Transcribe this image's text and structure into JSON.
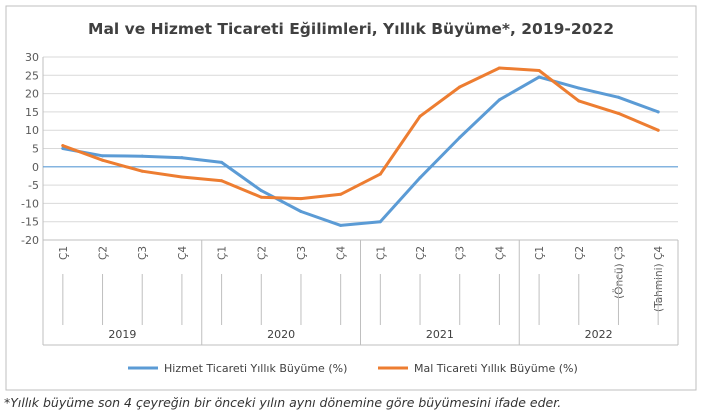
{
  "chart_data": {
    "type": "line",
    "title": "Mal ve Hizmet Ticareti Eğilimleri, Yıllık Büyüme*, 2019-2022",
    "ylim": [
      -20,
      30
    ],
    "yticks": [
      "30",
      "25",
      "20",
      "15",
      "10",
      "5",
      "0",
      "-5",
      "-10",
      "-15",
      "-20"
    ],
    "quarter_labels": [
      "Ç1",
      "Ç2",
      "Ç3",
      "Ç4",
      "Ç1",
      "Ç2",
      "Ç3",
      "Ç4",
      "Ç1",
      "Ç2",
      "Ç3",
      "Ç4",
      "Ç1",
      "Ç2",
      "(Öncü) Ç3",
      "(Tahmini) Ç4"
    ],
    "years": [
      "2019",
      "2020",
      "2021",
      "2022"
    ],
    "grid": true,
    "legend_position": "bottom",
    "series": [
      {
        "name": "Hizmet Ticareti Yıllık Büyüme (%)",
        "color": "#5B9BD5",
        "values": [
          5.0,
          3.0,
          2.9,
          2.5,
          1.2,
          -6.5,
          -12.2,
          -16.0,
          -15.0,
          -3.0,
          8.0,
          18.3,
          24.5,
          21.5,
          19.0,
          15.0
        ]
      },
      {
        "name": "Mal Ticareti Yıllık Büyüme (%)",
        "color": "#ED7D31",
        "values": [
          5.8,
          1.8,
          -1.2,
          -2.8,
          -3.8,
          -8.3,
          -8.7,
          -7.5,
          -2.0,
          13.8,
          21.8,
          27.0,
          26.3,
          18.0,
          14.6,
          10.0
        ]
      }
    ]
  },
  "footnote": "*Yıllık büyüme son 4 çeyreğin bir önceki yılın aynı dönemine göre büyümesini ifade eder.",
  "colors": {
    "zero_line": "#5B9BD5",
    "grid": "#D9D9D9",
    "frame": "#BFBFBF",
    "axis_text": "#595959"
  }
}
